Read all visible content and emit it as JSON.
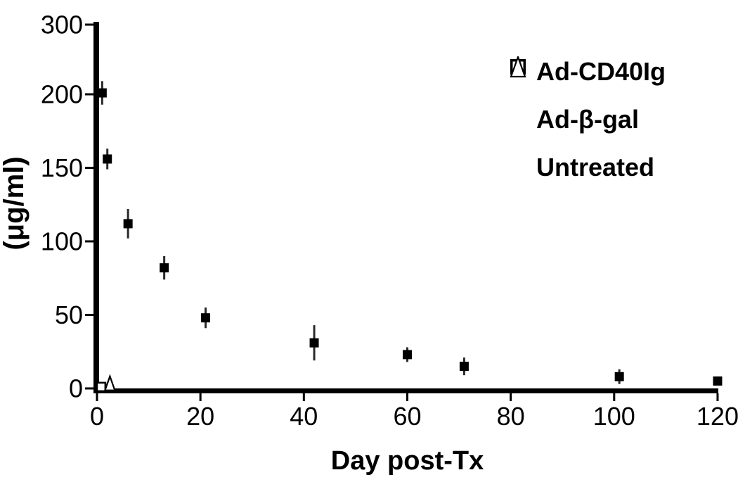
{
  "chart_data": {
    "type": "scatter",
    "title": "",
    "xlabel": "Day post-Tx",
    "ylabel": "(μg/ml)",
    "x_ticks": [
      0,
      20,
      40,
      60,
      80,
      100,
      120
    ],
    "y_ticks": [
      0,
      50,
      100,
      150,
      200,
      300
    ],
    "xlim": [
      0,
      120
    ],
    "ylim": [
      0,
      300
    ],
    "grid": false,
    "legend_position": "upper-right",
    "background_color": "#ffffff",
    "axis_color": "#000000",
    "error_bar_color": "#2a2a2a",
    "series": [
      {
        "name": "Ad-CD40Ig",
        "marker": "filled-square",
        "color": "#000000",
        "x": [
          1,
          2,
          6,
          13,
          21,
          42,
          60,
          71,
          101,
          120
        ],
        "y": [
          202,
          156,
          112,
          82,
          48,
          31,
          23,
          15,
          8,
          5
        ],
        "yerr": [
          8,
          7,
          10,
          8,
          7,
          12,
          5,
          6,
          5,
          0
        ]
      },
      {
        "name": "Ad-β-gal",
        "marker": "open-square",
        "color": "#000000",
        "x": [
          0.8
        ],
        "y": [
          1
        ],
        "yerr": [
          0
        ]
      },
      {
        "name": "Untreated",
        "marker": "open-triangle",
        "color": "#000000",
        "x": [
          2.5
        ],
        "y": [
          3
        ],
        "yerr": [
          0
        ]
      }
    ]
  }
}
